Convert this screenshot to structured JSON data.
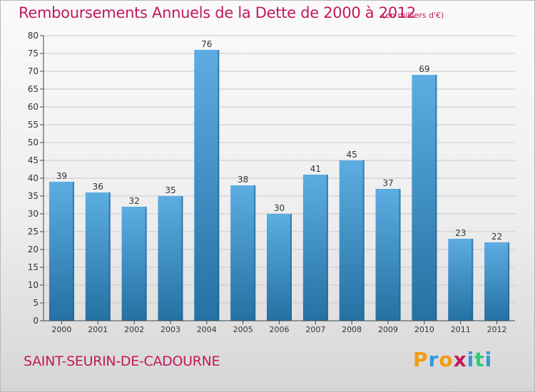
{
  "header": {
    "title": "Remboursements Annuels de la Dette de 2000 à 2012",
    "unit": "(en milliers d'€)"
  },
  "footer": {
    "place": "SAINT-SEURIN-DE-CADOURNE",
    "logo": "Proxiti",
    "logo_colors": [
      "#f39c12",
      "#3498db",
      "#f39c12",
      "#c2185b",
      "#3498db",
      "#2ecc71",
      "#3498db"
    ]
  },
  "colors": {
    "bar_top": "#5dade2",
    "bar_bottom": "#2471a3",
    "bar_side": "#1f5f8b",
    "axis": "#444444",
    "grid": "#c8c8c8",
    "label": "#333333",
    "title": "#c2185b"
  },
  "chart_data": {
    "type": "bar",
    "title": "Remboursements Annuels de la Dette de 2000 à 2012",
    "subtitle": "(en milliers d'€)",
    "xlabel": "",
    "ylabel": "",
    "categories": [
      "2000",
      "2001",
      "2002",
      "2003",
      "2004",
      "2005",
      "2006",
      "2007",
      "2008",
      "2009",
      "2010",
      "2011",
      "2012"
    ],
    "values": [
      39,
      36,
      32,
      35,
      76,
      38,
      30,
      41,
      45,
      37,
      69,
      23,
      22
    ],
    "value_labels": [
      "39",
      "36",
      "32",
      "35",
      "76",
      "38",
      "30",
      "41",
      "45",
      "37",
      "69",
      "23",
      "22"
    ],
    "ylim": [
      0,
      80
    ],
    "yticks": [
      0,
      5,
      10,
      15,
      20,
      25,
      30,
      35,
      40,
      45,
      50,
      55,
      60,
      65,
      70,
      75,
      80
    ],
    "ytick_labels": [
      "0",
      "5",
      "10",
      "15",
      "20",
      "25",
      "30",
      "35",
      "40",
      "45",
      "50",
      "55",
      "60",
      "65",
      "70",
      "75",
      "80"
    ],
    "grid": true,
    "legend": "none"
  }
}
